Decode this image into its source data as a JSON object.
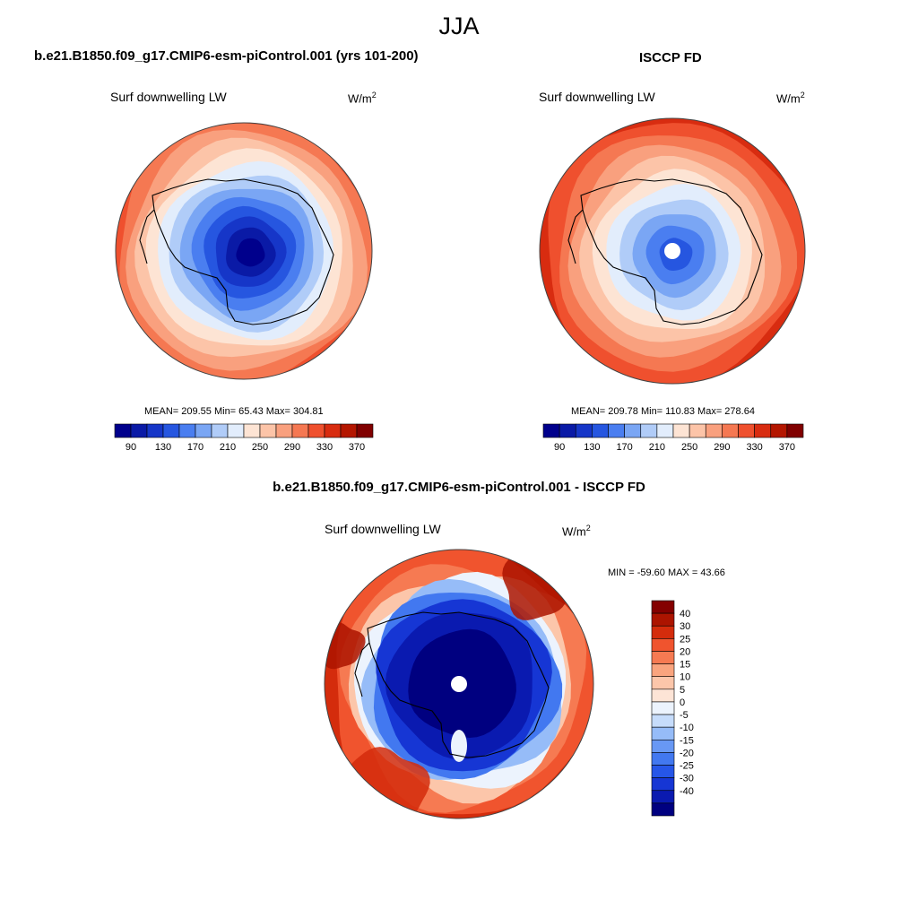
{
  "title": "JJA",
  "colors": {
    "abs_palette": [
      "#00008c",
      "#0a1aa6",
      "#1636c8",
      "#2656e0",
      "#4a7ef0",
      "#7aa6f4",
      "#b0ccf8",
      "#e2edfc",
      "#fde4d4",
      "#fcc4a8",
      "#f9a07e",
      "#f57852",
      "#ef502e",
      "#d82c10",
      "#b41600",
      "#800000"
    ],
    "diff_palette": [
      "#000080",
      "#0a1ab0",
      "#1636d4",
      "#2656e8",
      "#4278f0",
      "#6898f4",
      "#96bcf8",
      "#c6dcfb",
      "#ecf3fd",
      "#fde4d6",
      "#fcc6aa",
      "#f9a47e",
      "#f67a52",
      "#f0542e",
      "#d42c0c",
      "#ac1400",
      "#840000"
    ],
    "land_contour": "#000000"
  },
  "panels": [
    {
      "id": "model",
      "title": "b.e21.B1850.f09_g17.CMIP6-esm-piControl.001 (yrs 101-200)",
      "variable": "Surf downwelling LW",
      "units_base": "W/m",
      "units_exp": "2",
      "stats": "MEAN= 209.55  Min=  65.43  Max= 304.81",
      "colorbar_labels": [
        "90",
        "130",
        "170",
        "210",
        "250",
        "290",
        "330",
        "370"
      ],
      "rings": [
        0,
        1,
        2,
        3,
        4,
        5,
        6,
        7,
        8,
        9,
        10,
        11,
        12,
        13
      ],
      "pole_hole": false
    },
    {
      "id": "obs",
      "title": "ISCCP FD",
      "variable": "Surf downwelling LW",
      "units_base": "W/m",
      "units_exp": "2",
      "stats": "MEAN= 209.78  Min= 110.83  Max= 278.64",
      "colorbar_labels": [
        "90",
        "130",
        "170",
        "210",
        "250",
        "290",
        "330",
        "370"
      ],
      "rings": [
        3,
        4,
        5,
        6,
        7,
        8,
        9,
        10,
        11,
        12,
        13,
        14
      ],
      "pole_hole": true
    },
    {
      "id": "diff",
      "title": "b.e21.B1850.f09_g17.CMIP6-esm-piControl.001 - ISCCP FD",
      "variable": "Surf downwelling LW",
      "units_base": "W/m",
      "units_exp": "2",
      "stats": "MIN = -59.60 MAX =  43.66",
      "colorbar_labels": [
        "40",
        "30",
        "25",
        "20",
        "15",
        "10",
        "5",
        "0",
        "-5",
        "-10",
        "-15",
        "-20",
        "-25",
        "-30",
        "-40"
      ],
      "pole_hole": true
    }
  ]
}
